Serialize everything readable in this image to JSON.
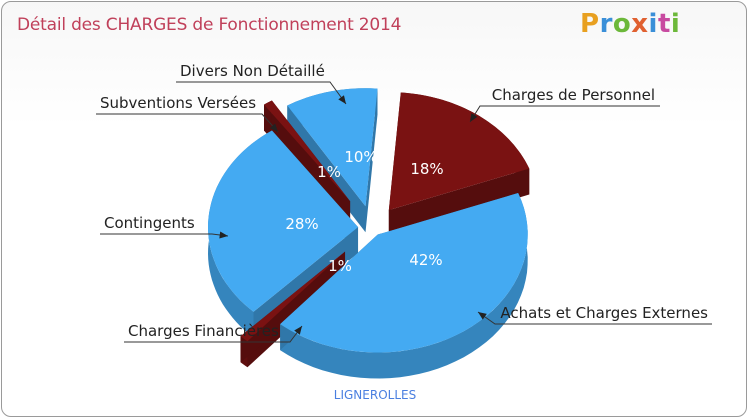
{
  "title": "Détail des CHARGES de Fonctionnement 2014",
  "brand": {
    "letters": [
      "P",
      "r",
      "o",
      "x",
      "i",
      "t",
      "i"
    ],
    "colors": [
      "#e8a020",
      "#3a8fd8",
      "#6cb83a",
      "#e06030",
      "#3a8fd8",
      "#c84aa0",
      "#6cb83a"
    ]
  },
  "commune": "LIGNEROLLES",
  "colors": {
    "blue": "#44aaf2",
    "blue_side": "#2f8fd8",
    "red": "#7a1212",
    "red_side": "#5a0c0c"
  },
  "chart_data": {
    "type": "pie",
    "title": "Détail des CHARGES de Fonctionnement 2014",
    "series": [
      {
        "name": "Charges de Personnel",
        "value": 18,
        "label": "18%",
        "color": "#7a1212"
      },
      {
        "name": "Achats et Charges Externes",
        "value": 42,
        "label": "42%",
        "color": "#44aaf2"
      },
      {
        "name": "Charges Financières",
        "value": 1,
        "label": "1%",
        "color": "#7a1212"
      },
      {
        "name": "Contingents",
        "value": 28,
        "label": "28%",
        "color": "#44aaf2"
      },
      {
        "name": "Subventions Versées",
        "value": 1,
        "label": "1%",
        "color": "#7a1212"
      },
      {
        "name": "Divers Non Détaillé",
        "value": 10,
        "label": "10%",
        "color": "#44aaf2"
      }
    ]
  }
}
